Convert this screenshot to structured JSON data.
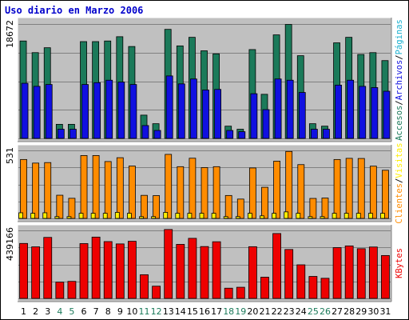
{
  "chart_data": {
    "title": "Uso diario en Marzo 2006",
    "days": [
      "1",
      "2",
      "3",
      "4",
      "5",
      "6",
      "7",
      "8",
      "9",
      "10",
      "11",
      "12",
      "13",
      "14",
      "15",
      "16",
      "17",
      "18",
      "19",
      "20",
      "21",
      "22",
      "23",
      "24",
      "25",
      "26",
      "27",
      "28",
      "29",
      "30",
      "31"
    ],
    "weekend_days": [
      "4",
      "5",
      "11",
      "12",
      "18",
      "19",
      "25",
      "26"
    ],
    "colors": {
      "background": "#c0c0c0",
      "accesos": "#1b7a5a",
      "archivos": "#1010e0",
      "paginas": "#19b0d0",
      "visitas": "#ffee00",
      "clientes": "#ff8c00",
      "kbytes": "#ee0000",
      "weekend_text": "#1b7a5a",
      "title": "#0000cc"
    },
    "panels": [
      {
        "type": "bar",
        "max_label": "18672",
        "ylim": [
          0,
          18672
        ],
        "legend": [
          "Accesos",
          "/",
          "Archivos",
          "/",
          "Páginas"
        ],
        "series": [
          {
            "name": "Accesos",
            "values": [
              15900,
              14000,
              14800,
              2300,
              2300,
              15800,
              15800,
              15900,
              16600,
              15000,
              3800,
              2400,
              17800,
              15100,
              16500,
              14300,
              13800,
              2000,
              1500,
              14500,
              7200,
              16900,
              18600,
              13500,
              2400,
              2000,
              15600,
              16500,
              13700,
              14000,
              12700
            ]
          },
          {
            "name": "Archivos",
            "values": [
              9000,
              8500,
              8800,
              1500,
              1500,
              8800,
              9100,
              9500,
              9200,
              8800,
              2100,
              1300,
              10200,
              8900,
              9700,
              7900,
              8000,
              1300,
              1100,
              7300,
              4700,
              9700,
              9500,
              7500,
              1500,
              1500,
              8700,
              9500,
              8500,
              8300,
              7700
            ]
          },
          {
            "name": "Páginas",
            "values": [
              0,
              0,
              0,
              0,
              0,
              0,
              0,
              0,
              0,
              0,
              0,
              0,
              0,
              0,
              0,
              0,
              0,
              0,
              0,
              0,
              0,
              0,
              0,
              0,
              0,
              0,
              0,
              0,
              0,
              0,
              0
            ]
          }
        ]
      },
      {
        "type": "bar",
        "max_label": "531",
        "ylim": [
          0,
          531
        ],
        "legend": [
          "Clientes",
          "/",
          "Visitas"
        ],
        "series": [
          {
            "name": "Clientes",
            "values": [
              460,
              432,
              436,
              181,
              157,
              491,
              491,
              444,
              474,
              409,
              180,
              178,
              500,
              404,
              470,
              397,
              404,
              179,
              151,
              394,
              243,
              447,
              523,
              420,
              156,
              159,
              460,
              469,
              468,
              408,
              376
            ]
          },
          {
            "name": "Visitas",
            "values": [
              44,
              40,
              44,
              14,
              14,
              40,
              40,
              40,
              47,
              40,
              14,
              14,
              47,
              40,
              40,
              40,
              40,
              14,
              14,
              40,
              20,
              40,
              51,
              40,
              14,
              14,
              40,
              40,
              40,
              40,
              40
            ]
          }
        ]
      },
      {
        "type": "bar",
        "max_label": "439166",
        "ylim": [
          0,
          439166
        ],
        "legend": [
          "KBytes"
        ],
        "series": [
          {
            "name": "KBytes",
            "values": [
              355000,
              333000,
              394000,
              105000,
              110000,
              354000,
              396000,
              367000,
              352000,
              369000,
              153000,
              79000,
              445000,
              349000,
              388000,
              335000,
              366000,
              66000,
              72000,
              334000,
              137000,
              419000,
              316000,
              217000,
              142000,
              130000,
              328000,
              339000,
              321000,
              332000,
              277000
            ]
          }
        ]
      }
    ]
  }
}
